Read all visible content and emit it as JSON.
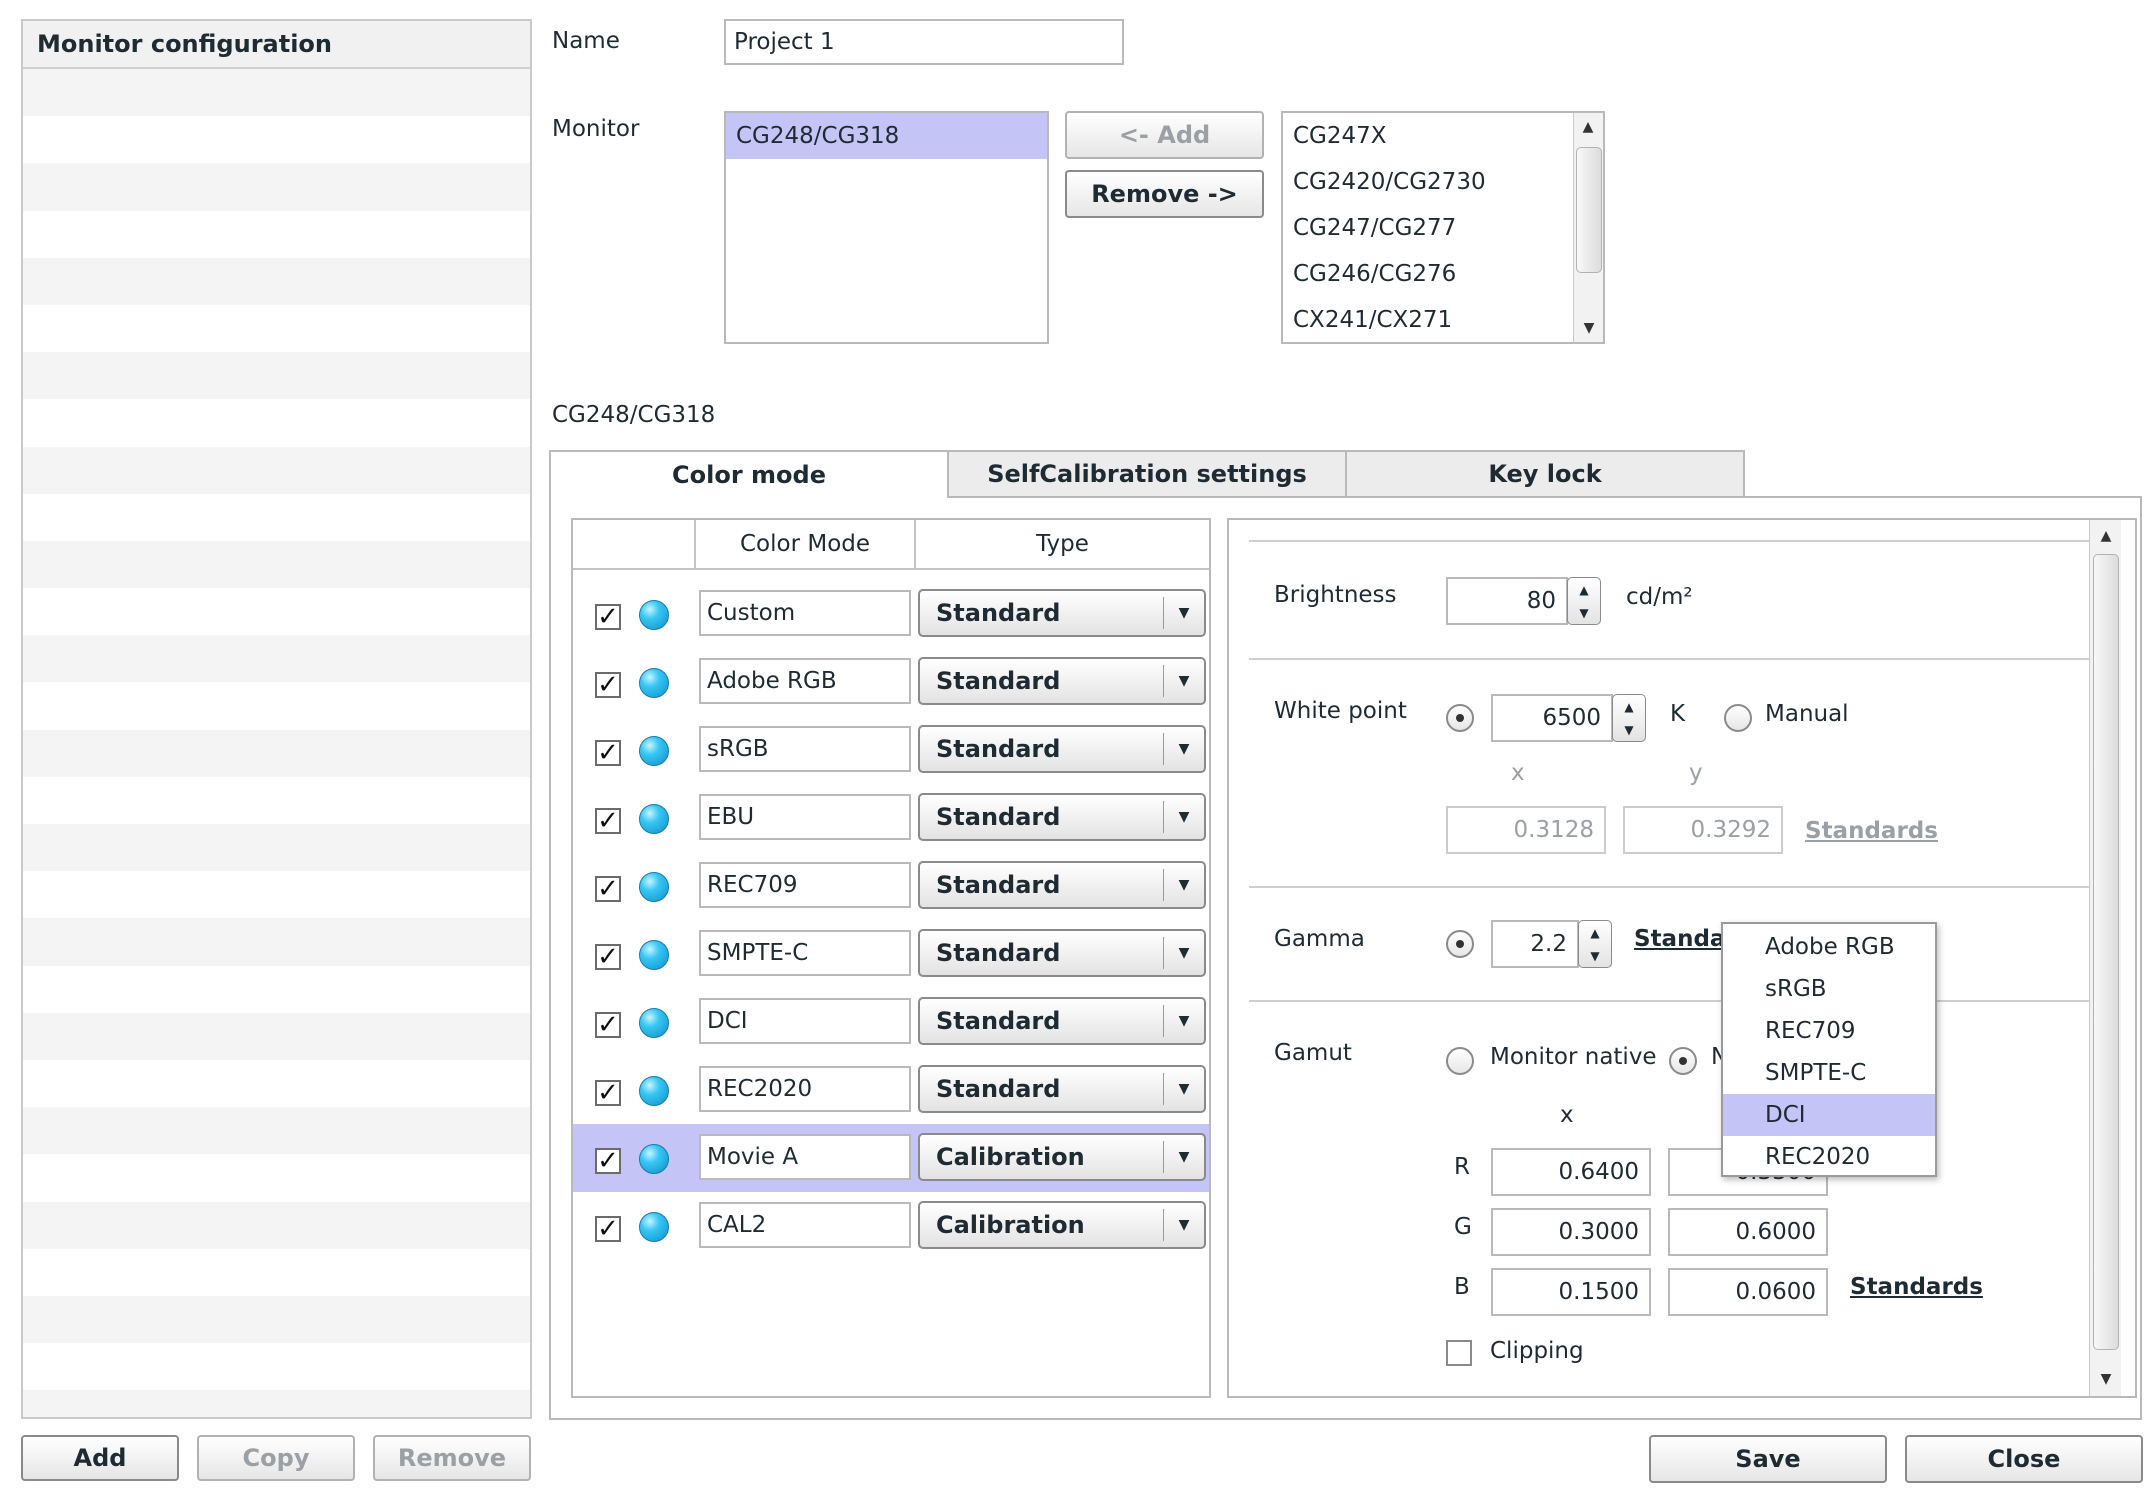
{
  "left_panel": {
    "title": "Monitor configuration",
    "add_label": "Add",
    "copy_label": "Copy",
    "remove_label": "Remove"
  },
  "name_field": {
    "label": "Name",
    "value": "Project 1"
  },
  "monitor": {
    "label": "Monitor",
    "selected_list": [
      "CG248/CG318"
    ],
    "add_label": "<- Add",
    "remove_label": "Remove ->",
    "available_list": [
      "CG247X",
      "CG2420/CG2730",
      "CG247/CG277",
      "CG246/CG276",
      "CX241/CX271"
    ]
  },
  "current_monitor": "CG248/CG318",
  "tabs": [
    {
      "label": "Color mode",
      "active": true
    },
    {
      "label": "SelfCalibration settings",
      "active": false
    },
    {
      "label": "Key lock",
      "active": false
    }
  ],
  "color_mode_table": {
    "headers": [
      "Color Mode",
      "Type"
    ],
    "rows": [
      {
        "checked": true,
        "name": "Custom",
        "type": "Standard"
      },
      {
        "checked": true,
        "name": "Adobe RGB",
        "type": "Standard"
      },
      {
        "checked": true,
        "name": "sRGB",
        "type": "Standard"
      },
      {
        "checked": true,
        "name": "EBU",
        "type": "Standard"
      },
      {
        "checked": true,
        "name": "REC709",
        "type": "Standard"
      },
      {
        "checked": true,
        "name": "SMPTE-C",
        "type": "Standard"
      },
      {
        "checked": true,
        "name": "DCI",
        "type": "Standard"
      },
      {
        "checked": true,
        "name": "REC2020",
        "type": "Standard"
      },
      {
        "checked": true,
        "name": "Movie A",
        "type": "Calibration",
        "selected": true
      },
      {
        "checked": true,
        "name": "CAL2",
        "type": "Calibration"
      }
    ]
  },
  "settings": {
    "brightness": {
      "label": "Brightness",
      "value": "80",
      "unit": "cd/m²"
    },
    "white_point": {
      "label": "White point",
      "value": "6500",
      "unit": "K",
      "manual_label": "Manual",
      "x_label": "x",
      "y_label": "y",
      "x_value": "0.3128",
      "y_value": "0.3292",
      "standards_label": "Standards"
    },
    "gamma": {
      "label": "Gamma",
      "value": "2.2",
      "standards_label": "Standa"
    },
    "gamut": {
      "label": "Gamut",
      "native_label": "Monitor native",
      "second_option_label": "N",
      "x_label": "x",
      "r_label": "R",
      "r_x": "0.6400",
      "r_y": "0.3300",
      "g_label": "G",
      "g_x": "0.3000",
      "g_y": "0.6000",
      "b_label": "B",
      "b_x": "0.1500",
      "b_y": "0.0600",
      "standards_label": "Standards",
      "clipping_label": "Clipping"
    }
  },
  "standards_popup": {
    "items": [
      "Adobe RGB",
      "sRGB",
      "REC709",
      "SMPTE-C",
      "DCI",
      "REC2020"
    ],
    "selected": "DCI"
  },
  "footer": {
    "save_label": "Save",
    "close_label": "Close"
  },
  "colors": {
    "selection": "#c4c4f7",
    "bulb": "#37c7f4",
    "text": "#1e2b33"
  }
}
